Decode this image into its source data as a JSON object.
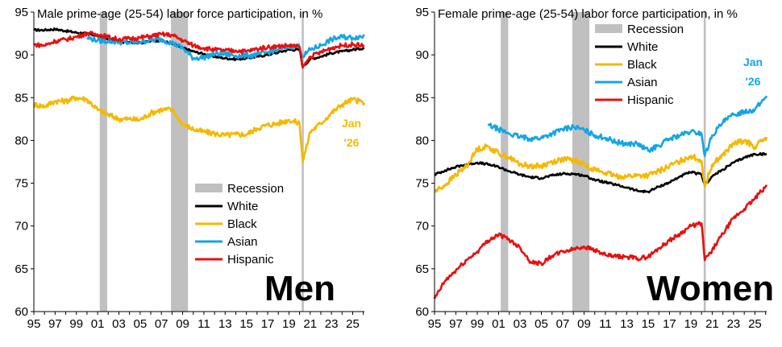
{
  "chart_data": [
    {
      "type": "line",
      "title": "Male prime-age (25-54) labor force participation, in %",
      "panel_label": "Men",
      "end_label": [
        "Jan",
        "'26"
      ],
      "end_label_series": "Black",
      "xlabel": "",
      "ylabel": "",
      "ylim": [
        60,
        95
      ],
      "yticks": [
        60,
        65,
        70,
        75,
        80,
        85,
        90,
        95
      ],
      "xlim": [
        1995.0,
        2026.1
      ],
      "xtick_labels": [
        "95",
        "97",
        "99",
        "01",
        "03",
        "05",
        "07",
        "09",
        "11",
        "13",
        "15",
        "17",
        "19",
        "21",
        "23",
        "25"
      ],
      "grid": false,
      "legend_placement": "lower-right",
      "recessions": [
        [
          2001.2,
          2001.9
        ],
        [
          2007.9,
          2009.5
        ],
        [
          2020.2,
          2020.4
        ]
      ],
      "series": [
        {
          "name": "White",
          "color": "#000000",
          "x": [
            1995,
            1996,
            1997,
            1998,
            1999,
            2000,
            2001,
            2002,
            2003,
            2004,
            2005,
            2006,
            2007,
            2008,
            2009,
            2010,
            2011,
            2012,
            2013,
            2014,
            2015,
            2016,
            2017,
            2018,
            2019,
            2020,
            2020.3,
            2021,
            2022,
            2023,
            2024,
            2025,
            2026.1
          ],
          "y": [
            92.9,
            92.9,
            93.0,
            92.8,
            92.6,
            92.5,
            92.2,
            91.8,
            91.5,
            91.5,
            91.4,
            91.6,
            91.7,
            91.3,
            90.8,
            90.4,
            90.1,
            89.8,
            89.6,
            89.5,
            89.6,
            89.8,
            90.0,
            90.3,
            90.6,
            90.6,
            88.6,
            89.5,
            89.8,
            90.2,
            90.4,
            90.6,
            90.8
          ]
        },
        {
          "name": "Black",
          "color": "#f5b800",
          "x": [
            1995,
            1996,
            1997,
            1998,
            1999,
            2000,
            2001,
            2002,
            2003,
            2004,
            2005,
            2006,
            2007,
            2008,
            2009,
            2010,
            2011,
            2012,
            2013,
            2014,
            2015,
            2016,
            2017,
            2018,
            2019,
            2020,
            2020.3,
            2021,
            2022,
            2023,
            2024,
            2025,
            2026.1
          ],
          "y": [
            84.2,
            84.0,
            84.6,
            84.6,
            85.0,
            84.8,
            83.6,
            83.0,
            82.5,
            82.5,
            82.4,
            83.2,
            83.6,
            83.6,
            81.9,
            81.3,
            81.0,
            80.8,
            80.6,
            80.7,
            80.7,
            81.4,
            81.8,
            82.0,
            82.4,
            82.0,
            77.5,
            81.0,
            82.0,
            83.2,
            84.2,
            84.8,
            84.4
          ]
        },
        {
          "name": "Asian",
          "color": "#14a5e6",
          "x": [
            2000,
            2001,
            2002,
            2003,
            2004,
            2005,
            2006,
            2007,
            2008,
            2009,
            2010,
            2011,
            2012,
            2013,
            2014,
            2015,
            2016,
            2017,
            2018,
            2019,
            2020,
            2020.3,
            2021,
            2022,
            2023,
            2024,
            2025,
            2026.1
          ],
          "y": [
            92.0,
            91.7,
            91.6,
            91.5,
            91.4,
            91.5,
            91.7,
            91.8,
            91.4,
            90.8,
            89.6,
            89.7,
            90.1,
            90.1,
            89.9,
            89.9,
            90.0,
            90.3,
            90.6,
            91.0,
            91.0,
            89.8,
            90.6,
            91.1,
            91.8,
            92.1,
            92.0,
            92.2
          ]
        },
        {
          "name": "Hispanic",
          "color": "#e81010",
          "x": [
            1995,
            1996,
            1997,
            1998,
            1999,
            2000,
            2001,
            2002,
            2003,
            2004,
            2005,
            2006,
            2007,
            2008,
            2009,
            2010,
            2011,
            2012,
            2013,
            2014,
            2015,
            2016,
            2017,
            2018,
            2019,
            2020,
            2020.3,
            2021,
            2022,
            2023,
            2024,
            2025,
            2026.1
          ],
          "y": [
            91.2,
            91.1,
            91.6,
            91.8,
            92.1,
            92.5,
            92.4,
            92.1,
            91.8,
            91.9,
            92.0,
            92.2,
            92.4,
            92.3,
            91.7,
            91.1,
            90.8,
            90.6,
            90.5,
            90.5,
            90.4,
            90.7,
            90.9,
            91.0,
            91.1,
            90.9,
            88.5,
            89.8,
            90.3,
            90.8,
            91.1,
            91.2,
            91.1
          ]
        }
      ]
    },
    {
      "type": "line",
      "title": "Female prime-age (25-54) labor force participation, in %",
      "panel_label": "Women",
      "end_label": [
        "Jan",
        "'26"
      ],
      "end_label_series": "Asian",
      "xlabel": "",
      "ylabel": "",
      "ylim": [
        60,
        95
      ],
      "yticks": [
        60,
        65,
        70,
        75,
        80,
        85,
        90,
        95
      ],
      "xlim": [
        1995.0,
        2026.1
      ],
      "xtick_labels": [
        "95",
        "97",
        "99",
        "01",
        "03",
        "05",
        "07",
        "09",
        "11",
        "13",
        "15",
        "17",
        "19",
        "21",
        "23",
        "25"
      ],
      "grid": false,
      "legend_placement": "upper-left",
      "recessions": [
        [
          2001.2,
          2001.9
        ],
        [
          2007.9,
          2009.5
        ],
        [
          2020.2,
          2020.4
        ]
      ],
      "series": [
        {
          "name": "White",
          "color": "#000000",
          "x": [
            1995,
            1996,
            1997,
            1998,
            1999,
            2000,
            2001,
            2002,
            2003,
            2004,
            2005,
            2006,
            2007,
            2008,
            2009,
            2010,
            2011,
            2012,
            2013,
            2014,
            2015,
            2016,
            2017,
            2018,
            2019,
            2020,
            2020.3,
            2021,
            2022,
            2023,
            2024,
            2025,
            2026.1
          ],
          "y": [
            76.0,
            76.5,
            76.9,
            77.2,
            77.4,
            77.2,
            76.9,
            76.4,
            76.0,
            75.7,
            75.6,
            75.9,
            76.1,
            76.1,
            75.9,
            75.4,
            75.1,
            74.8,
            74.5,
            74.1,
            74.0,
            74.6,
            75.1,
            75.8,
            76.3,
            76.0,
            74.8,
            75.8,
            76.6,
            77.4,
            78.0,
            78.4,
            78.4
          ]
        },
        {
          "name": "Black",
          "color": "#f5b800",
          "x": [
            1995,
            1996,
            1997,
            1998,
            1999,
            2000,
            2001,
            2002,
            2003,
            2004,
            2005,
            2006,
            2007,
            2008,
            2009,
            2010,
            2011,
            2012,
            2013,
            2014,
            2015,
            2016,
            2017,
            2018,
            2019,
            2020,
            2020.3,
            2021,
            2022,
            2023,
            2024,
            2025,
            2026.1
          ],
          "y": [
            74.0,
            74.8,
            76.0,
            77.0,
            79.0,
            79.3,
            78.5,
            78.0,
            77.2,
            77.0,
            77.0,
            77.5,
            77.8,
            77.7,
            77.2,
            76.6,
            76.2,
            75.8,
            75.8,
            75.9,
            75.9,
            76.4,
            77.0,
            77.6,
            78.2,
            77.6,
            74.6,
            77.2,
            78.3,
            79.6,
            80.0,
            79.2,
            80.4
          ]
        },
        {
          "name": "Asian",
          "color": "#14a5e6",
          "x": [
            2000,
            2001,
            2002,
            2003,
            2004,
            2005,
            2006,
            2007,
            2008,
            2009,
            2010,
            2011,
            2012,
            2013,
            2014,
            2015,
            2016,
            2017,
            2018,
            2019,
            2020,
            2020.3,
            2021,
            2022,
            2023,
            2024,
            2025,
            2026.1
          ],
          "y": [
            81.8,
            81.3,
            80.8,
            80.4,
            80.2,
            80.3,
            80.8,
            81.3,
            81.6,
            81.2,
            80.6,
            80.3,
            79.8,
            79.6,
            79.6,
            78.8,
            79.4,
            80.2,
            80.6,
            81.0,
            80.8,
            78.2,
            80.6,
            82.1,
            83.0,
            83.4,
            83.6,
            85.2
          ]
        },
        {
          "name": "Hispanic",
          "color": "#e81010",
          "x": [
            1995,
            1996,
            1997,
            1998,
            1999,
            2000,
            2001,
            2002,
            2003,
            2004,
            2005,
            2006,
            2007,
            2008,
            2009,
            2010,
            2011,
            2012,
            2013,
            2014,
            2015,
            2016,
            2017,
            2018,
            2019,
            2020,
            2020.3,
            2021,
            2022,
            2023,
            2024,
            2025,
            2026.1
          ],
          "y": [
            61.5,
            63.6,
            64.8,
            66.0,
            67.0,
            68.3,
            69.0,
            68.4,
            67.5,
            65.8,
            65.6,
            66.5,
            67.0,
            67.3,
            67.6,
            67.2,
            66.6,
            66.4,
            66.4,
            66.2,
            66.4,
            67.4,
            68.3,
            69.1,
            70.0,
            70.3,
            66.0,
            67.2,
            69.1,
            70.9,
            72.0,
            73.2,
            74.8
          ]
        }
      ]
    }
  ]
}
